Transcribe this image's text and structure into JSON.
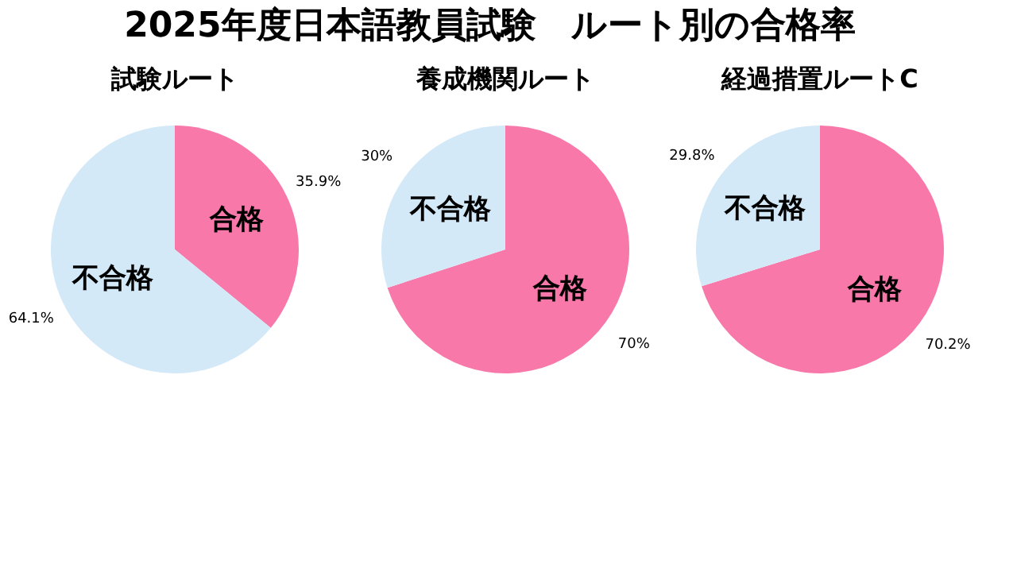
{
  "chart_data": [
    {
      "type": "pie",
      "title": "2025年度日本語教員試験　ルート別の合格率",
      "subtitle": "試験ルート",
      "categories": [
        "合格",
        "不合格"
      ],
      "values": [
        35.9,
        64.1
      ],
      "colors": [
        "#f778a9",
        "#d4e9f8"
      ],
      "value_labels": [
        "35.9%",
        "64.1%"
      ]
    },
    {
      "type": "pie",
      "subtitle": "養成機関ルート",
      "categories": [
        "合格",
        "不合格"
      ],
      "values": [
        70,
        30
      ],
      "colors": [
        "#f778a9",
        "#d4e9f8"
      ],
      "value_labels": [
        "70%",
        "30%"
      ]
    },
    {
      "type": "pie",
      "subtitle": "経過措置ルートC",
      "categories": [
        "合格",
        "不合格"
      ],
      "values": [
        70.2,
        29.8
      ],
      "colors": [
        "#f778a9",
        "#d4e9f8"
      ],
      "value_labels": [
        "70.2%",
        "29.8%"
      ]
    }
  ]
}
